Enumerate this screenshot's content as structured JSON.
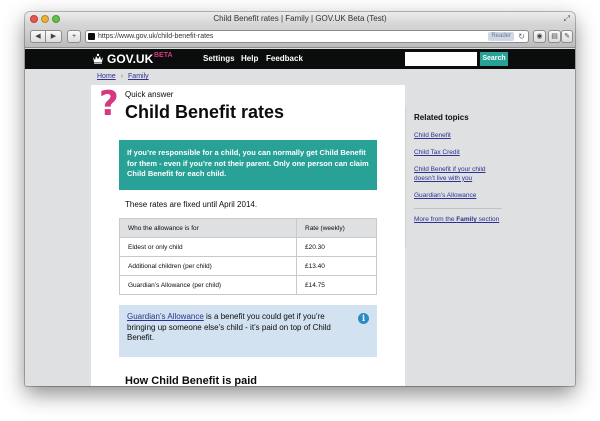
{
  "window": {
    "title": "Child Benefit rates | Family | GOV.UK Beta (Test)"
  },
  "browser": {
    "url": "https://www.gov.uk/child-benefit-rates",
    "reader_label": "Reader",
    "back_glyph": "◀",
    "forward_glyph": "▶",
    "add_glyph": "+",
    "reload_glyph": "↻"
  },
  "header": {
    "logo": "GOV.UK",
    "beta": "BETA",
    "nav": [
      "Settings",
      "Help",
      "Feedback"
    ],
    "search_button": "Search"
  },
  "breadcrumb": [
    "Home",
    "Family"
  ],
  "article": {
    "kicker": "Quick answer",
    "title": "Child Benefit rates",
    "summary": "If you’re responsible for a child, you can normally get Child Benefit for them - even if you’re not their parent. Only one person can claim Child Benefit for each child.",
    "rates_note": "These rates are fixed until April 2014.",
    "table": {
      "headers": [
        "Who the allowance is for",
        "Rate (weekly)"
      ],
      "rows": [
        [
          "Eldest or only child",
          "£20.30"
        ],
        [
          "Additional children (per child)",
          "£13.40"
        ],
        [
          "Guardian’s Allowance (per child)",
          "£14.75"
        ]
      ]
    },
    "info": {
      "link": "Guardian’s Allowance",
      "text": " is a benefit you could get if you’re bringing up someone else’s child - it’s paid on top of Child Benefit."
    },
    "next_heading": "How Child Benefit is paid"
  },
  "related": {
    "title": "Related topics",
    "links": [
      "Child Benefit",
      "Child Tax Credit",
      "Child Benefit if your child doesn’t live with you",
      "Guardian’s Allowance"
    ],
    "more_prefix": "More from the ",
    "more_bold": "Family",
    "more_suffix": " section"
  }
}
